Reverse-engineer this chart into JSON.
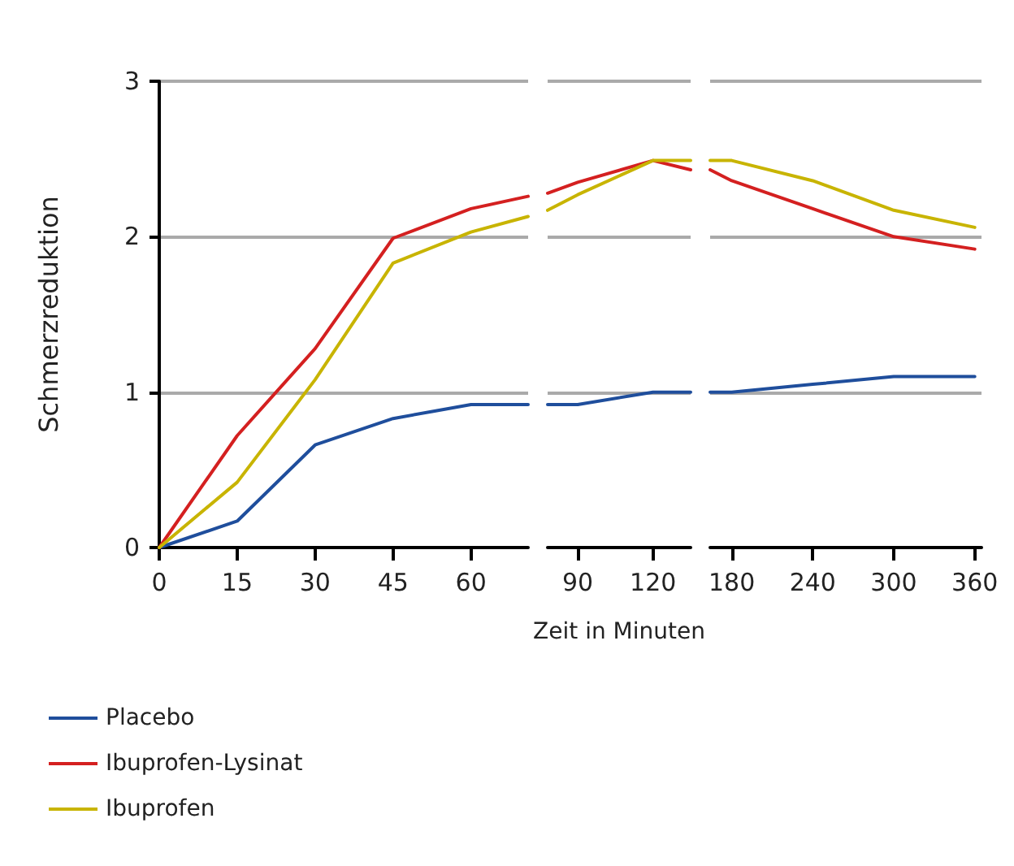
{
  "chart_data": [
    {
      "type": "line",
      "ylabel": "Schmerzreduktion",
      "xlim": [
        0,
        71
      ],
      "xticks": [
        0,
        15,
        30,
        45,
        60
      ],
      "ylim": [
        0,
        3
      ],
      "yticks": [
        0,
        1,
        2,
        3
      ],
      "grid": "y",
      "legend": "bottom left",
      "series": [
        {
          "name": "Placebo",
          "color": "#1f4e9c",
          "x": [
            0,
            15,
            30,
            45,
            60,
            71
          ],
          "values": [
            0,
            0.17,
            0.66,
            0.83,
            0.92,
            0.92
          ]
        },
        {
          "name": "Ibuprofen-Lysinat",
          "color": "#d42020",
          "x": [
            0,
            15,
            30,
            45,
            60,
            71
          ],
          "values": [
            0,
            0.72,
            1.28,
            1.99,
            2.18,
            2.26
          ]
        },
        {
          "name": "Ibuprofen",
          "color": "#c8b400",
          "x": [
            0,
            15,
            30,
            45,
            60,
            71
          ],
          "values": [
            0,
            0.42,
            1.08,
            1.83,
            2.03,
            2.13
          ]
        }
      ]
    },
    {
      "type": "line",
      "xlabel": "Zeit in Minuten",
      "xlim": [
        78,
        135
      ],
      "xticks": [
        90,
        120
      ],
      "ylim": [
        0,
        3
      ],
      "yticks": [
        0,
        1,
        2,
        3
      ],
      "grid": "y",
      "tick_labels": "x",
      "series": [
        {
          "color": "#1f4e9c",
          "x": [
            78,
            90,
            120,
            135
          ],
          "values": [
            0.92,
            0.92,
            1.0,
            1.0
          ]
        },
        {
          "color": "#d42020",
          "x": [
            78,
            90,
            120,
            135
          ],
          "values": [
            2.28,
            2.35,
            2.49,
            2.43
          ]
        },
        {
          "color": "#c8b400",
          "x": [
            78,
            90,
            120,
            135
          ],
          "values": [
            2.17,
            2.27,
            2.49,
            2.49
          ]
        }
      ]
    },
    {
      "type": "line",
      "xlim": [
        164,
        365
      ],
      "xticks": [
        180,
        240,
        300,
        360
      ],
      "ylim": [
        0,
        3
      ],
      "yticks": [
        0,
        1,
        2,
        3
      ],
      "grid": "y",
      "tick_labels": "x",
      "series": [
        {
          "color": "#1f4e9c",
          "x": [
            164,
            180,
            240,
            300,
            360
          ],
          "values": [
            1.0,
            1.0,
            1.05,
            1.1,
            1.1
          ]
        },
        {
          "color": "#d42020",
          "x": [
            164,
            180,
            240,
            300,
            360
          ],
          "values": [
            2.43,
            2.36,
            2.18,
            2.0,
            1.92
          ]
        },
        {
          "color": "#c8b400",
          "x": [
            164,
            180,
            240,
            300,
            360
          ],
          "values": [
            2.49,
            2.49,
            2.36,
            2.17,
            2.06
          ]
        }
      ]
    }
  ]
}
